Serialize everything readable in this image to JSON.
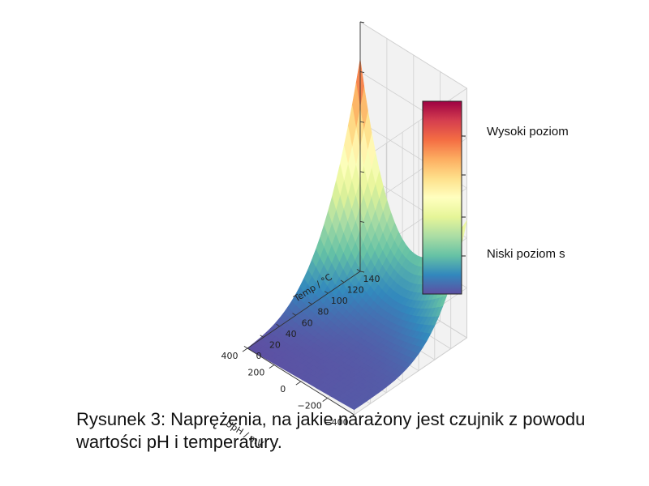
{
  "caption": "Rysunek 3: Naprężenia, na jakie narażony jest czujnik z powodu wartości pH i temperatury.",
  "chart_data": {
    "type": "surface3d",
    "x_axis": {
      "label": "UpH / mV",
      "range": [
        -400,
        400
      ],
      "ticks": [
        -400,
        -200,
        0,
        200,
        400
      ]
    },
    "y_axis": {
      "label": "Temp / °C",
      "range": [
        0,
        140
      ],
      "ticks": [
        0,
        20,
        40,
        60,
        80,
        100,
        120,
        140
      ]
    },
    "z_axis": {
      "label": "",
      "ticks_labeled": false
    },
    "colormap": "Spectral_r",
    "colormap_stops": [
      "#5e4fa2",
      "#3288bd",
      "#66c2a5",
      "#abdda4",
      "#e6f598",
      "#ffffbf",
      "#fee08b",
      "#fdae61",
      "#f46d43",
      "#d53e4f",
      "#9e0142"
    ],
    "colorbar_labels": {
      "high": "Wysoki poziom",
      "low": "Niski poziom s"
    },
    "grid": true
  }
}
